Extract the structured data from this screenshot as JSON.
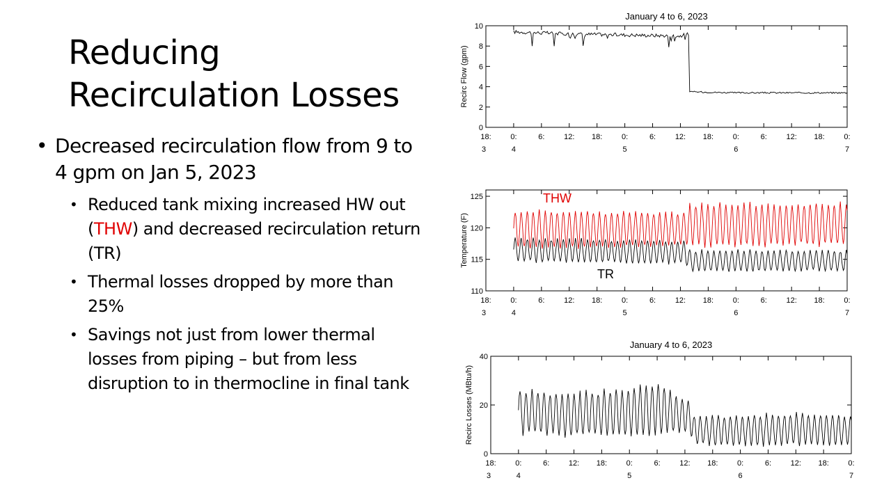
{
  "slide": {
    "title_line1": "Reducing",
    "title_line2": "Recirculation Losses",
    "bullet_main": "Decreased recirculation flow from 9 to 4 gpm on Jan 5, 2023",
    "sub_bullets": {
      "b1_before": "Reduced tank mixing increased HW out (",
      "b1_thw": "THW",
      "b1_after": ") and decreased recirculation return (TR)",
      "b2": "Thermal losses dropped by more than 25%",
      "b3": "Savings not just from lower thermal losses from piping – but from less disruption to in thermocline in final tank"
    },
    "thw_color": "#e00000"
  },
  "chart_data": [
    {
      "type": "line",
      "title": "January 4 to 6, 2023",
      "ylabel": "Recirc Flow (gpm)",
      "ylim": [
        0,
        10
      ],
      "yticks": [
        "0",
        "2",
        "4",
        "6",
        "8",
        "10"
      ],
      "x_hour_ticks": [
        "18:",
        "0:",
        "6:",
        "12:",
        "18:",
        "0:",
        "6:",
        "12:",
        "18:",
        "0:",
        "6:",
        "12:",
        "18:",
        "0:"
      ],
      "x_day_ticks": [
        "3",
        "4",
        "5",
        "6",
        "7"
      ],
      "xlim_hours": [
        -6,
        72
      ],
      "series": [
        {
          "color": "#000000",
          "x_hours": [
            0,
            12,
            24,
            36,
            37.8,
            38,
            48,
            60,
            72
          ],
          "y": [
            9.4,
            9.2,
            9.1,
            9.0,
            9.2,
            3.5,
            3.4,
            3.4,
            3.4
          ]
        }
      ]
    },
    {
      "type": "line",
      "ylabel": "Temperature (F)",
      "ylim": [
        110,
        126
      ],
      "yticks": [
        "110",
        "115",
        "120",
        "125"
      ],
      "x_hour_ticks": [
        "18:",
        "0:",
        "6:",
        "12:",
        "18:",
        "0:",
        "6:",
        "12:",
        "18:",
        "0:",
        "6:",
        "12:",
        "18:",
        "0:"
      ],
      "x_day_ticks": [
        "3",
        "4",
        "5",
        "6",
        "7"
      ],
      "xlim_hours": [
        -6,
        72
      ],
      "annotations": [
        "THW",
        "TR"
      ],
      "series": [
        {
          "name": "THW",
          "color": "#e00000",
          "x_hours": [
            0,
            37,
            38,
            72
          ],
          "y_min": [
            116.5,
            117.0,
            117.0,
            117.0
          ],
          "y_max": [
            123.0,
            122.5,
            124.0,
            124.0
          ],
          "period_hours": 1.3
        },
        {
          "name": "TR",
          "color": "#000000",
          "x_hours": [
            0,
            37,
            38,
            72
          ],
          "y_min": [
            114.5,
            114.2,
            113.0,
            113.0
          ],
          "y_max": [
            118.5,
            118.0,
            116.5,
            116.5
          ],
          "period_hours": 1.3
        }
      ]
    },
    {
      "type": "line",
      "title": "January 4 to 6, 2023",
      "ylabel": "Recirc Losses (MBtu/h)",
      "ylim": [
        0,
        40
      ],
      "yticks": [
        "0",
        "20",
        "40"
      ],
      "x_hour_ticks": [
        "18:",
        "0:",
        "6:",
        "12:",
        "18:",
        "0:",
        "6:",
        "12:",
        "18:",
        "0:",
        "6:",
        "12:",
        "18:",
        "0:"
      ],
      "x_day_ticks": [
        "3",
        "4",
        "5",
        "6",
        "7"
      ],
      "xlim_hours": [
        -6,
        72
      ],
      "series": [
        {
          "color": "#000000",
          "x_hours": [
            0,
            12,
            24,
            30,
            37,
            38,
            48,
            60,
            72
          ],
          "y_min": [
            8,
            7,
            6,
            7,
            8,
            3,
            3,
            3,
            3
          ],
          "y_max": [
            27,
            25,
            28,
            29,
            22,
            16,
            16,
            17,
            16
          ],
          "period_hours": 1.3
        }
      ]
    }
  ]
}
